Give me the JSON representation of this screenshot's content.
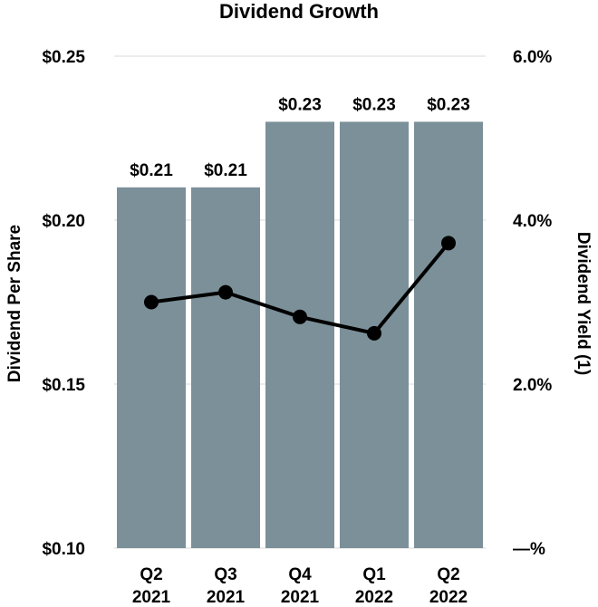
{
  "chart_data": {
    "type": "bar",
    "title": "Dividend Growth",
    "categories": [
      {
        "line1": "Q2",
        "line2": "2021"
      },
      {
        "line1": "Q3",
        "line2": "2021"
      },
      {
        "line1": "Q4",
        "line2": "2021"
      },
      {
        "line1": "Q1",
        "line2": "2022"
      },
      {
        "line1": "Q2",
        "line2": "2022"
      }
    ],
    "series": [
      {
        "name": "Dividend Per Share",
        "type": "bar",
        "axis": "left",
        "values": [
          0.21,
          0.21,
          0.23,
          0.23,
          0.23
        ],
        "labels": [
          "$0.21",
          "$0.21",
          "$0.23",
          "$0.23",
          "$0.23"
        ],
        "color": "#7b9099"
      },
      {
        "name": "Dividend Yield (1)",
        "type": "line",
        "axis": "right",
        "values": [
          3.0,
          3.12,
          2.82,
          2.62,
          3.72
        ],
        "color": "#000000"
      }
    ],
    "ylabel": "Dividend Per Share",
    "ylabel_right": "Dividend Yield (1)",
    "ylim": [
      0.1,
      0.25
    ],
    "ylim_right": [
      0.0,
      6.0
    ],
    "yticks": [
      {
        "value": 0.1,
        "label": "$0.10"
      },
      {
        "value": 0.15,
        "label": "$0.15"
      },
      {
        "value": 0.2,
        "label": "$0.20"
      },
      {
        "value": 0.25,
        "label": "$0.25"
      }
    ],
    "yticks_right": [
      {
        "value": 0.0,
        "label": "—%"
      },
      {
        "value": 2.0,
        "label": "2.0%"
      },
      {
        "value": 4.0,
        "label": "4.0%"
      },
      {
        "value": 6.0,
        "label": "6.0%"
      }
    ],
    "grid": true,
    "gridline_color": "#e6e6e6"
  }
}
